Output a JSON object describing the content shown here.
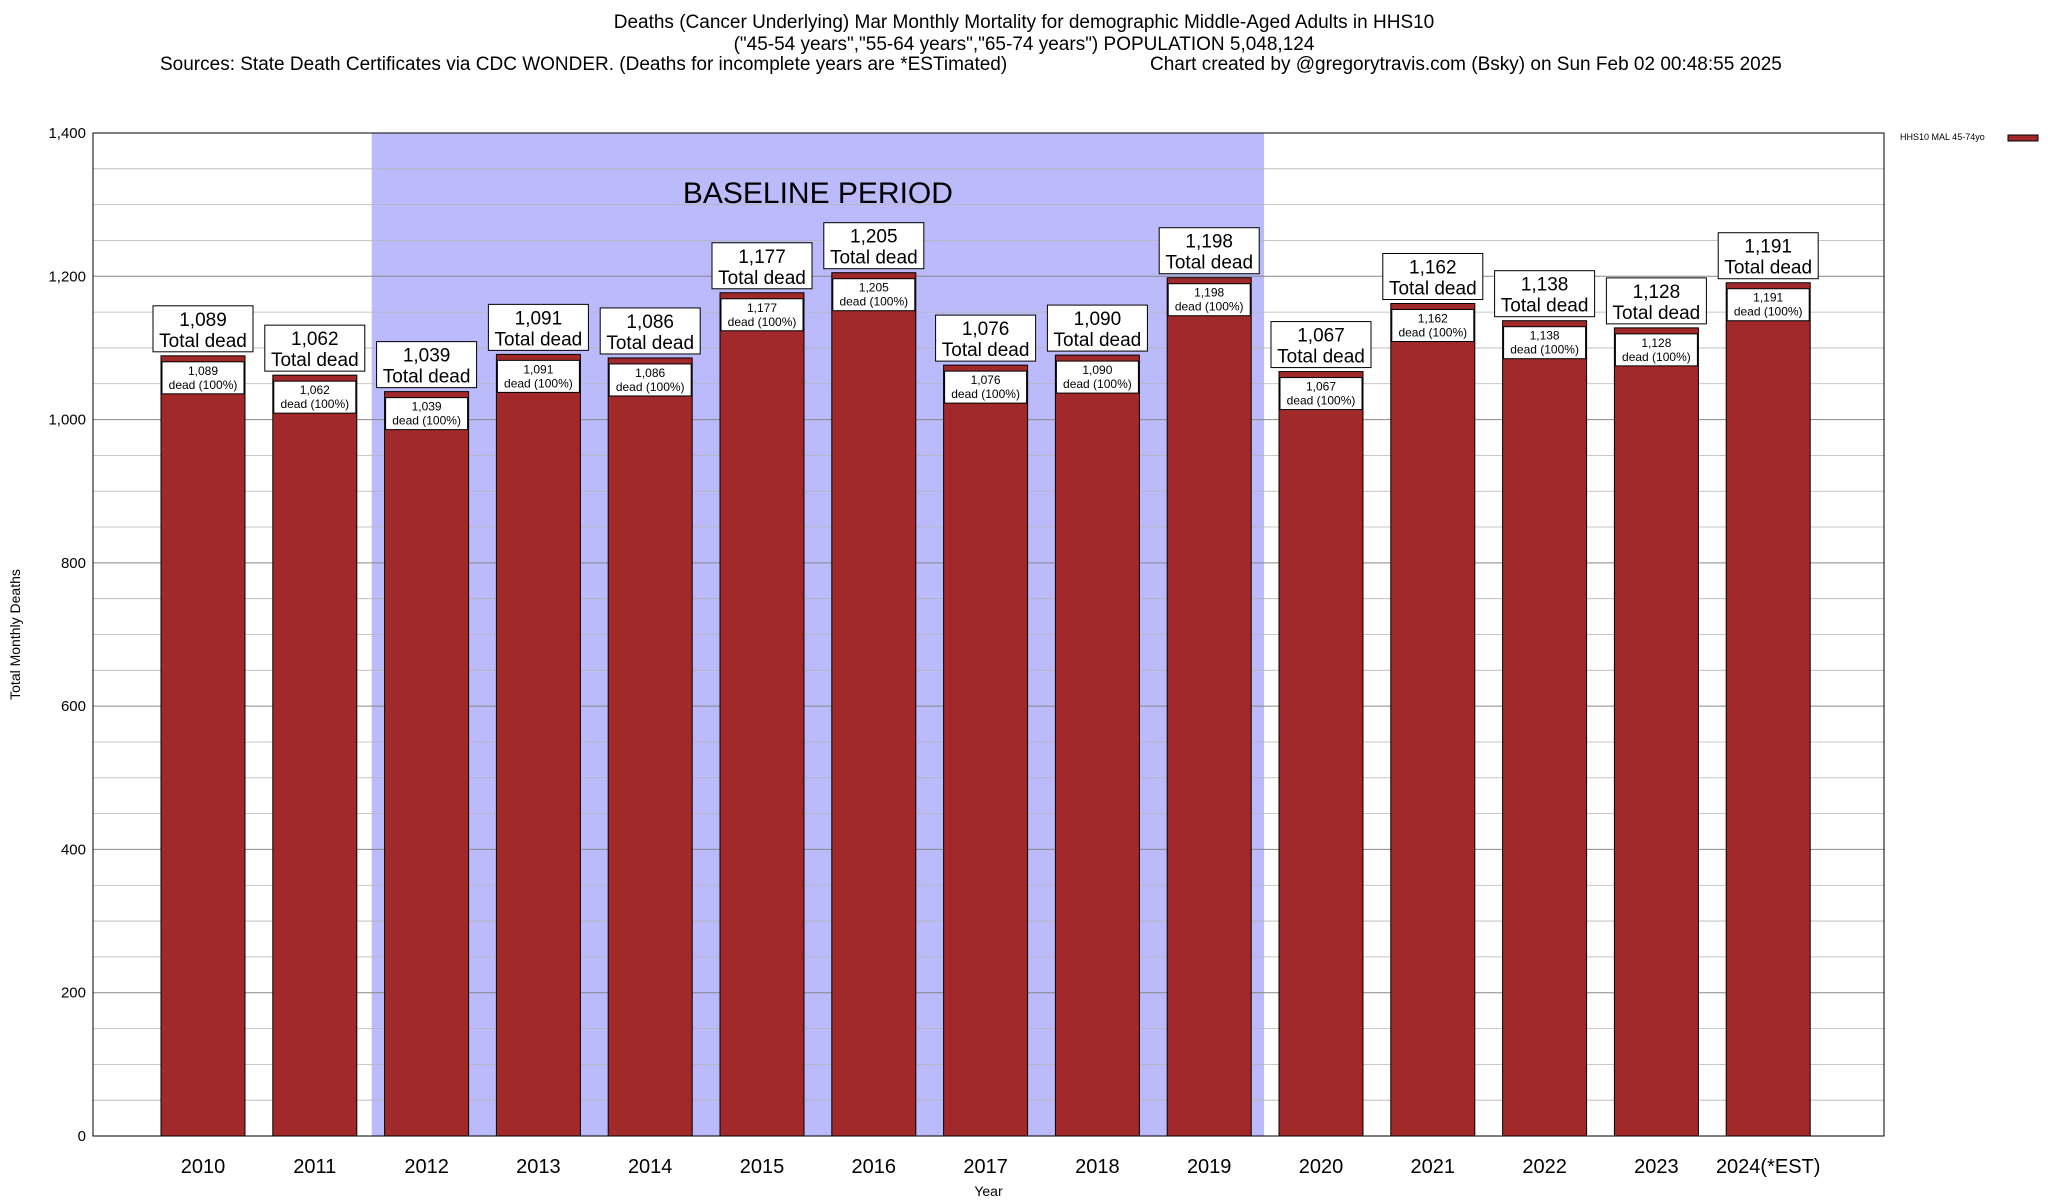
{
  "header": {
    "title_line1": "Deaths (Cancer Underlying) Mar Monthly Mortality for demographic Middle-Aged Adults in HHS10",
    "title_line2": "(\"45-54 years\",\"55-64 years\",\"65-74 years\") POPULATION 5,048,124",
    "sources": "Sources: State Death Certificates via CDC WONDER. (Deaths for incomplete years are *ESTimated)",
    "credit": "Chart created by @gregorytravis.com (Bsky) on Sun Feb 02 00:48:55 2025"
  },
  "chart_data": {
    "type": "bar",
    "xlabel": "Year",
    "ylabel": "Total Monthly Deaths",
    "ylim": [
      0,
      1400
    ],
    "yticks": [
      0,
      200,
      400,
      600,
      800,
      1000,
      1200,
      1400
    ],
    "ytick_labels": [
      "0",
      "200",
      "400",
      "600",
      "800",
      "1,000",
      "1,200",
      "1,400"
    ],
    "grid": true,
    "categories": [
      "2010",
      "2011",
      "2012",
      "2013",
      "2014",
      "2015",
      "2016",
      "2017",
      "2018",
      "2019",
      "2020",
      "2021",
      "2022",
      "2023",
      "2024(*EST)"
    ],
    "series": [
      {
        "name": "HHS10 MAL 45-74yo",
        "values": [
          1089,
          1062,
          1039,
          1091,
          1086,
          1177,
          1205,
          1076,
          1090,
          1198,
          1067,
          1162,
          1138,
          1128,
          1191
        ],
        "value_labels": [
          "1,089",
          "1,062",
          "1,039",
          "1,091",
          "1,086",
          "1,177",
          "1,205",
          "1,076",
          "1,090",
          "1,198",
          "1,067",
          "1,162",
          "1,138",
          "1,128",
          "1,191"
        ],
        "color": "#a2292a"
      }
    ],
    "total_label_suffix": "Total dead",
    "inner_label_suffix": "dead (100%)",
    "baseline": {
      "label": "BASELINE PERIOD",
      "start": "2012",
      "end": "2019",
      "color": "#bbbbfb"
    },
    "legend_position": "top-right"
  }
}
